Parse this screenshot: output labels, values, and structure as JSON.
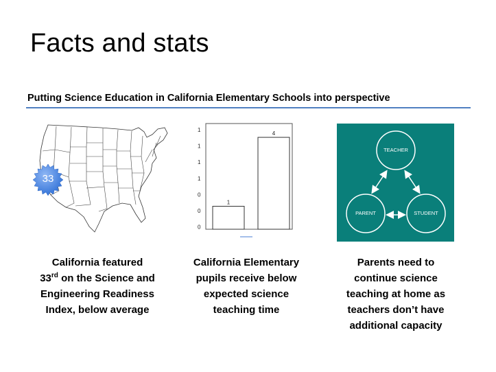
{
  "slide": {
    "title": "Facts and stats",
    "subtitle": "Putting Science Education in California Elementary Schools into perspective"
  },
  "map": {
    "badge_value": "33",
    "badge_color": "#3f7fe0"
  },
  "chart_data": {
    "type": "bar",
    "categories": [
      "",
      ""
    ],
    "values": [
      1,
      4
    ],
    "data_labels": [
      "1",
      "4"
    ],
    "y_tick_labels": [
      "1",
      "1",
      "1",
      "1",
      "0",
      "0",
      "0"
    ],
    "title": "",
    "xlabel": "",
    "ylabel": ""
  },
  "cycle": {
    "teacher": "TEACHER",
    "parent": "PARENT",
    "student": "STUDENT",
    "bg_color": "#0a7f7a"
  },
  "captions": {
    "c1_pre": "California featured",
    "c1_num": "33",
    "c1_sup": "rd",
    "c1_post": " on the Science and Engineering Readiness Index, below average",
    "c2": "California Elementary pupils receive below expected science teaching time",
    "c3": "Parents need to continue science teaching at home as teachers don’t have additional capacity"
  }
}
